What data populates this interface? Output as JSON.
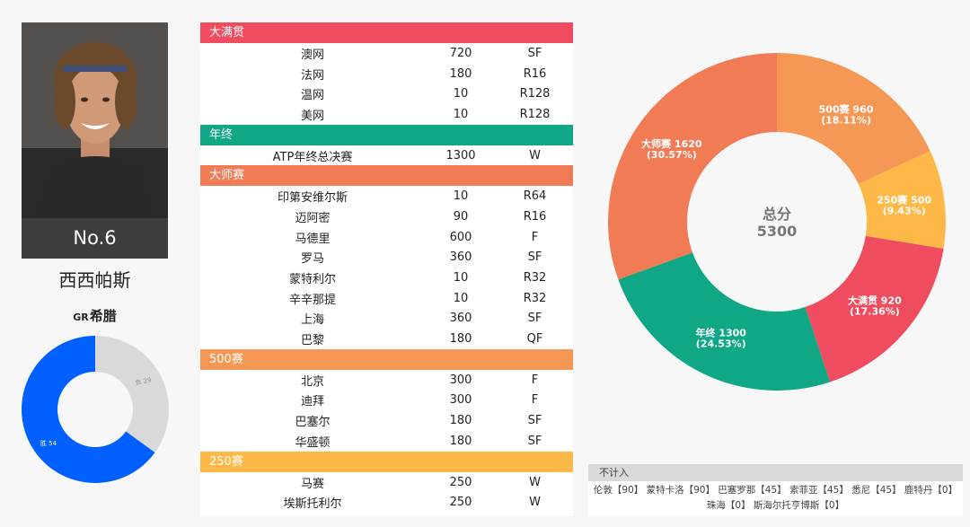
{
  "player": {
    "rank": "No.6",
    "name": "西西帕斯",
    "country_code": "GR",
    "country_name": "希腊"
  },
  "win_loss": {
    "wins_label": "胜 54",
    "losses_label": "负 29",
    "wins": 54,
    "losses": 29,
    "colors": {
      "wins": "#0060ff",
      "losses": "#d9d9d9"
    }
  },
  "sections": [
    {
      "title": "大满贯",
      "color": "#ef4c5f",
      "rows": [
        {
          "event": "澳网",
          "points": "720",
          "result": "SF"
        },
        {
          "event": "法网",
          "points": "180",
          "result": "R16"
        },
        {
          "event": "温网",
          "points": "10",
          "result": "R128"
        },
        {
          "event": "美网",
          "points": "10",
          "result": "R128"
        }
      ]
    },
    {
      "title": "年终",
      "color": "#0fa785",
      "rows": [
        {
          "event": "ATP年终总决赛",
          "points": "1300",
          "result": "W"
        }
      ]
    },
    {
      "title": "大师赛",
      "color": "#f07b54",
      "rows": [
        {
          "event": "印第安维尔斯",
          "points": "10",
          "result": "R64"
        },
        {
          "event": "迈阿密",
          "points": "90",
          "result": "R16"
        },
        {
          "event": "马德里",
          "points": "600",
          "result": "F"
        },
        {
          "event": "罗马",
          "points": "360",
          "result": "SF"
        },
        {
          "event": "蒙特利尔",
          "points": "10",
          "result": "R32"
        },
        {
          "event": "辛辛那提",
          "points": "10",
          "result": "R32"
        },
        {
          "event": "上海",
          "points": "360",
          "result": "SF"
        },
        {
          "event": "巴黎",
          "points": "180",
          "result": "QF"
        }
      ]
    },
    {
      "title": "500赛",
      "color": "#f59856",
      "rows": [
        {
          "event": "北京",
          "points": "300",
          "result": "F"
        },
        {
          "event": "迪拜",
          "points": "300",
          "result": "F"
        },
        {
          "event": "巴塞尔",
          "points": "180",
          "result": "SF"
        },
        {
          "event": "华盛顿",
          "points": "180",
          "result": "SF"
        }
      ]
    },
    {
      "title": "250赛",
      "color": "#fdb848",
      "rows": [
        {
          "event": "马赛",
          "points": "250",
          "result": "W"
        },
        {
          "event": "埃斯托利尔",
          "points": "250",
          "result": "W"
        }
      ]
    }
  ],
  "chart_data": {
    "type": "pie",
    "donut": true,
    "center_label": "总分",
    "center_value": "5300",
    "slices": [
      {
        "name": "500赛",
        "value": 960,
        "percent": "18.11%",
        "color": "#f59856"
      },
      {
        "name": "250赛",
        "value": 500,
        "percent": "9.43%",
        "color": "#fdb848"
      },
      {
        "name": "大满贯",
        "value": 920,
        "percent": "17.36%",
        "color": "#ef4c5f"
      },
      {
        "name": "年终",
        "value": 1300,
        "percent": "24.53%",
        "color": "#0fa785"
      },
      {
        "name": "大师赛",
        "value": 1620,
        "percent": "30.57%",
        "color": "#f07b54"
      }
    ]
  },
  "not_counted": {
    "title": "不计入",
    "line1": "伦敦【90】 蒙特卡洛【90】 巴塞罗那【45】 索菲亚【45】 悉尼【45】 鹿特丹【0】",
    "line2": "珠海【0】 斯海尔托亨博斯【0】"
  }
}
